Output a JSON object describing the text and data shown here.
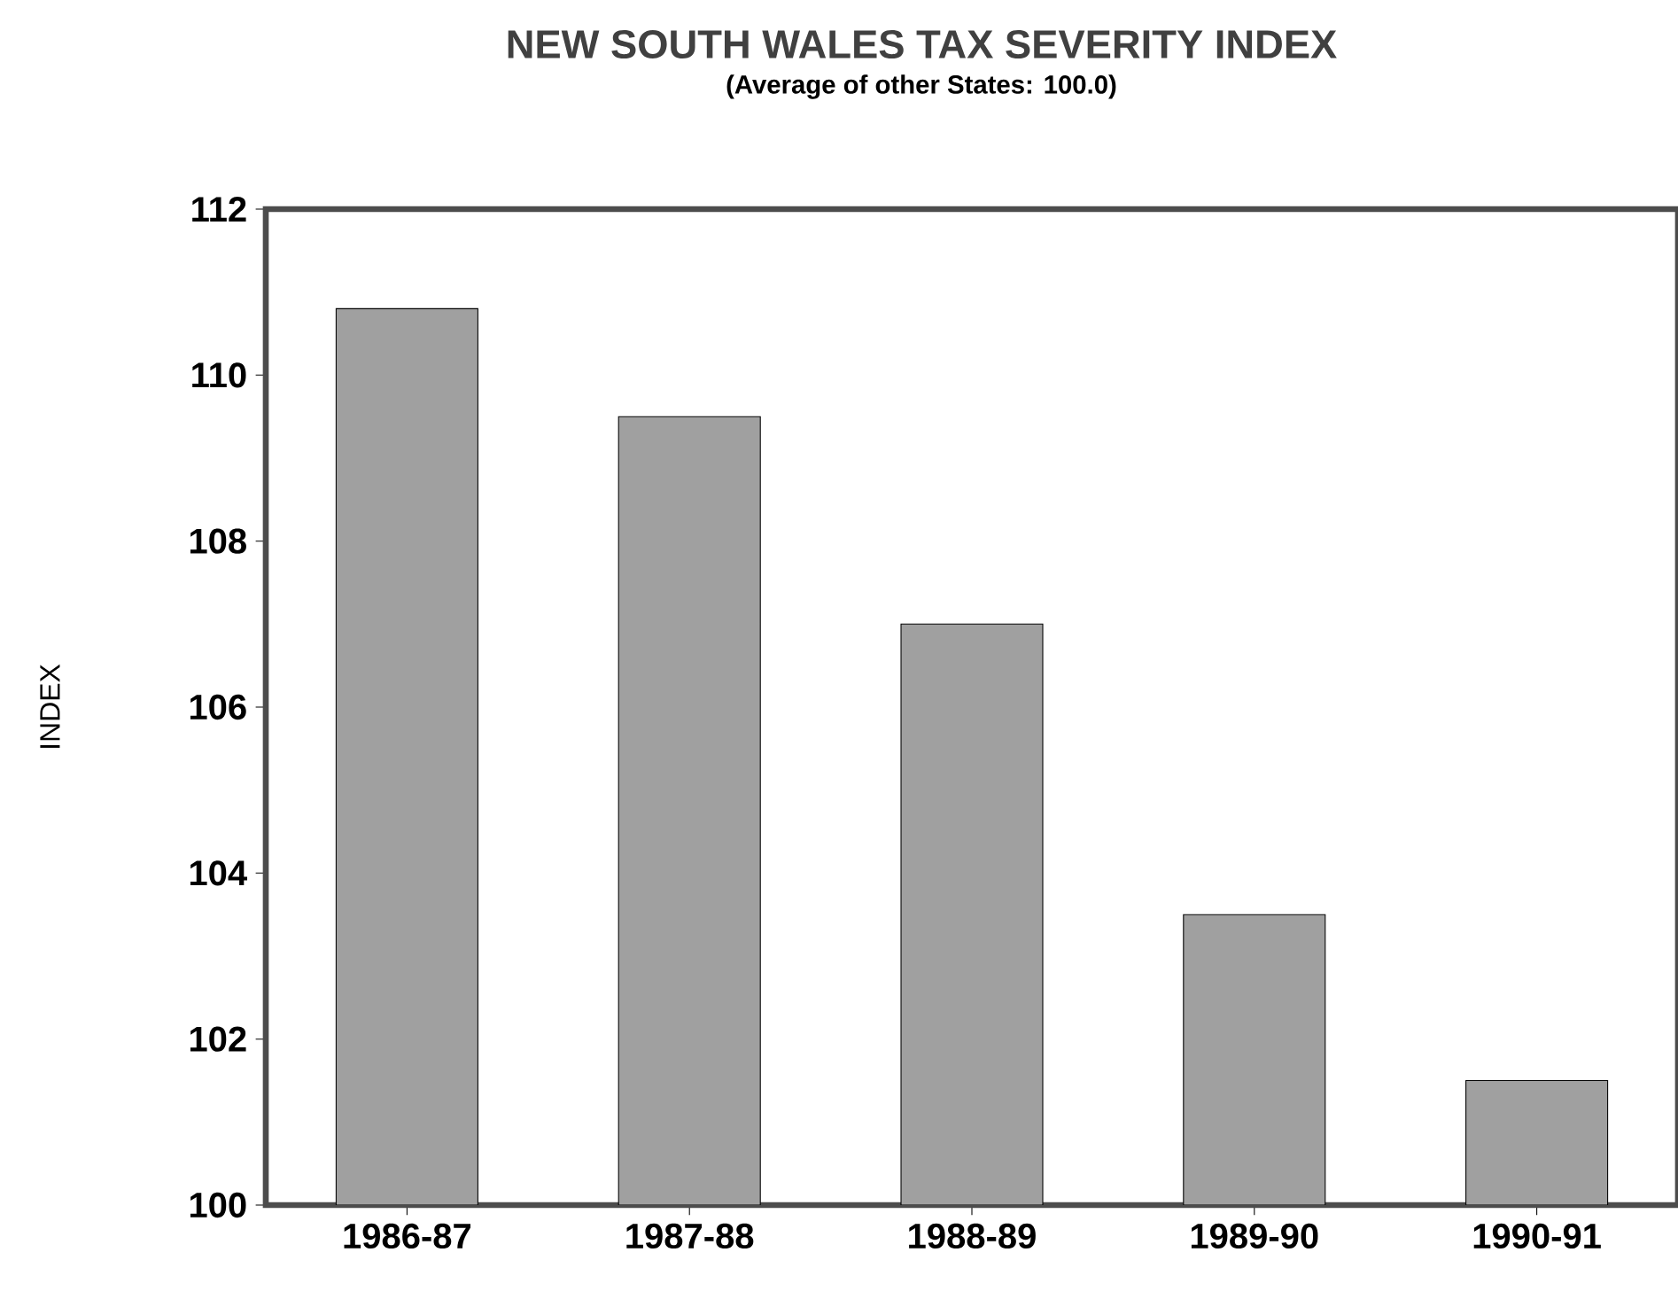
{
  "chart_data": {
    "type": "bar",
    "title": "NEW SOUTH WALES TAX SEVERITY INDEX",
    "subtitle": "(Average of other States: 100.0)",
    "ylabel": "INDEX",
    "categories": [
      "1986-87",
      "1987-88",
      "1988-89",
      "1989-90",
      "1990-91"
    ],
    "values": [
      110.8,
      109.5,
      107.0,
      103.5,
      101.5
    ],
    "color": "#a0a0a0",
    "ylim": [
      100,
      112
    ],
    "yticks": [
      100,
      102,
      104,
      106,
      108,
      110,
      112
    ]
  }
}
